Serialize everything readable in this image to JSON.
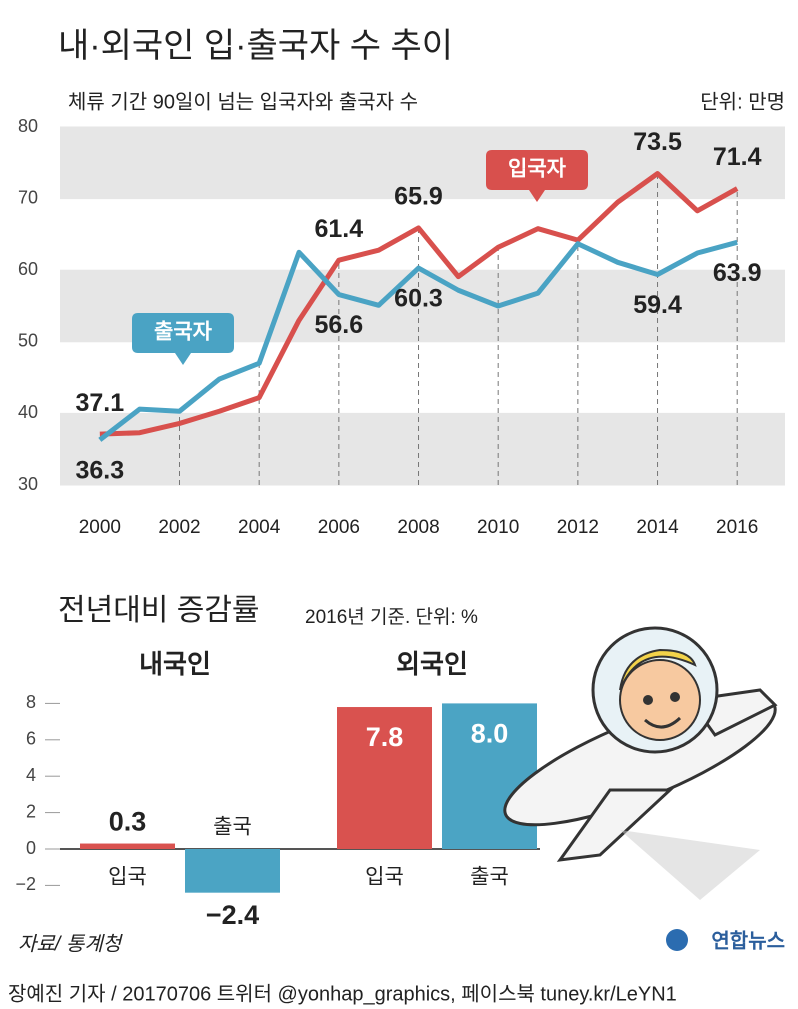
{
  "chart_data": [
    {
      "type": "line",
      "title": "내·외국인 입·출국자 수 추이",
      "subtitle": "체류 기간 90일이 넘는 입국자와 출국자 수",
      "unit": "단위: 만명",
      "x": [
        2000,
        2001,
        2002,
        2003,
        2004,
        2005,
        2006,
        2007,
        2008,
        2009,
        2010,
        2011,
        2012,
        2013,
        2014,
        2015,
        2016
      ],
      "series": [
        {
          "name": "입국자",
          "color": "#d8504d",
          "values": [
            37.1,
            37.3,
            38.6,
            40.3,
            42.2,
            53.0,
            61.4,
            62.8,
            65.9,
            59.1,
            63.2,
            65.8,
            64.2,
            69.5,
            73.5,
            68.3,
            71.4
          ]
        },
        {
          "name": "출국자",
          "color": "#4aa3c4",
          "values": [
            36.3,
            40.6,
            40.3,
            44.8,
            47.0,
            62.5,
            56.6,
            55.1,
            60.3,
            57.2,
            55.0,
            56.8,
            63.7,
            61.1,
            59.4,
            62.4,
            63.9
          ]
        }
      ],
      "xlim": [
        1999,
        2017.2
      ],
      "xticks": [
        2000,
        2002,
        2004,
        2006,
        2008,
        2010,
        2012,
        2014,
        2016
      ],
      "ylim": [
        30,
        80
      ],
      "yticks": [
        30,
        40,
        50,
        60,
        70,
        80
      ]
    },
    {
      "type": "bar",
      "title": "전년대비 증감률",
      "subtitle": "2016년 기준. 단위: %",
      "categories": [
        "내국인",
        "외국인"
      ],
      "series": [
        {
          "name": "입국",
          "color": "#d9524f",
          "values": [
            0.3,
            7.8
          ]
        },
        {
          "name": "출국",
          "color": "#4ba4c4",
          "values": [
            -2.4,
            8.0
          ],
          "value_labels": [
            "−2.4",
            "8.0"
          ]
        }
      ],
      "ylim": [
        -3,
        8.5
      ],
      "yticks": [
        8,
        6,
        4,
        2,
        0,
        {
          "value": -2,
          "label": "−2"
        }
      ]
    }
  ],
  "source": "자료/ 통계청",
  "logo": "연합뉴스",
  "credit": "장예진 기자 / 20170706 트위터 @yonhap_graphics, 페이스북 tuney.kr/LeYN1"
}
